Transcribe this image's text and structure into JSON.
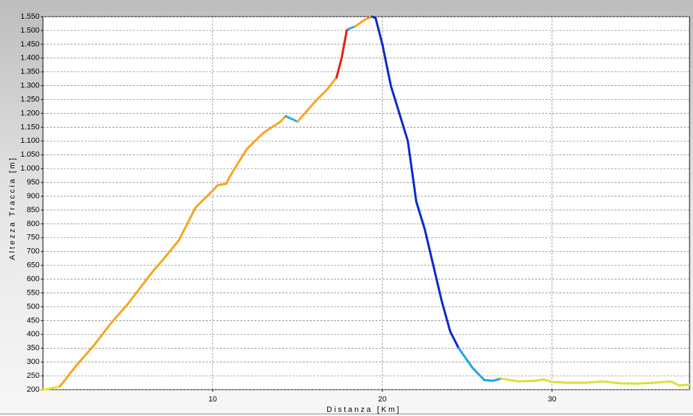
{
  "chart_data": {
    "type": "line",
    "x_label": "Distanza [Km]",
    "y_label": "Altezza Traccia [m]",
    "xlim": [
      0,
      38.1
    ],
    "ylim": [
      200,
      1550
    ],
    "xticks": [
      10,
      20,
      30
    ],
    "yticks": [
      200,
      250,
      300,
      350,
      400,
      450,
      500,
      550,
      600,
      650,
      700,
      750,
      800,
      850,
      900,
      950,
      {
        "value": 1000,
        "label": "1.000"
      },
      {
        "value": 1050,
        "label": "1.050"
      },
      {
        "value": 1100,
        "label": "1.100"
      },
      {
        "value": 1150,
        "label": "1.150"
      },
      {
        "value": 1200,
        "label": "1.200"
      },
      {
        "value": 1250,
        "label": "1.250"
      },
      {
        "value": 1300,
        "label": "1.300"
      },
      {
        "value": 1350,
        "label": "1.350"
      },
      {
        "value": 1400,
        "label": "1.400"
      },
      {
        "value": 1450,
        "label": "1.450"
      },
      {
        "value": 1500,
        "label": "1.500"
      },
      {
        "value": 1550,
        "label": "1.550"
      }
    ],
    "grid": true,
    "series": [
      {
        "color": "#f2e22a",
        "x": [
          0,
          0.5,
          1
        ],
        "values": [
          200,
          205,
          212
        ]
      },
      {
        "color": "#f5a623",
        "x": [
          1,
          2,
          3,
          4,
          5,
          6,
          6.5,
          7,
          8,
          9,
          10,
          10.3,
          10.8,
          11,
          11.5,
          12,
          13,
          14,
          14.3
        ],
        "values": [
          212,
          290,
          360,
          440,
          510,
          590,
          630,
          665,
          740,
          860,
          920,
          940,
          945,
          970,
          1020,
          1070,
          1130,
          1170,
          1190
        ]
      },
      {
        "color": "#22b4e8",
        "x": [
          14.3,
          15
        ],
        "values": [
          1190,
          1170
        ]
      },
      {
        "color": "#f5a623",
        "x": [
          15,
          16,
          16.8,
          17.3
        ],
        "values": [
          1170,
          1240,
          1290,
          1330
        ]
      },
      {
        "color": "#e8201a",
        "x": [
          17.3,
          17.6,
          17.9,
          18
        ],
        "values": [
          1330,
          1400,
          1500,
          1505
        ]
      },
      {
        "color": "#22b4e8",
        "x": [
          18,
          18.4
        ],
        "values": [
          1505,
          1515
        ]
      },
      {
        "color": "#f5a623",
        "x": [
          18.4,
          19,
          19.4
        ],
        "values": [
          1515,
          1540,
          1550
        ]
      },
      {
        "color": "#0a2ccc",
        "x": [
          19.4,
          19.6,
          20,
          20.5,
          21,
          21.5,
          22,
          22.5,
          23,
          23.5,
          24,
          24.5
        ],
        "values": [
          1550,
          1545,
          1450,
          1300,
          1200,
          1100,
          880,
          780,
          650,
          520,
          410,
          350
        ]
      },
      {
        "color": "#22a4e4",
        "x": [
          24.5,
          25.3,
          26,
          26.5,
          27
        ],
        "values": [
          350,
          280,
          235,
          232,
          240
        ]
      },
      {
        "color": "#d8e040",
        "x": [
          27,
          28,
          29,
          29.5,
          30,
          31,
          32,
          33,
          34,
          35,
          36,
          37,
          37.5,
          38.1
        ],
        "values": [
          240,
          230,
          232,
          237,
          228,
          225,
          225,
          230,
          223,
          222,
          225,
          230,
          215,
          218
        ]
      }
    ]
  }
}
